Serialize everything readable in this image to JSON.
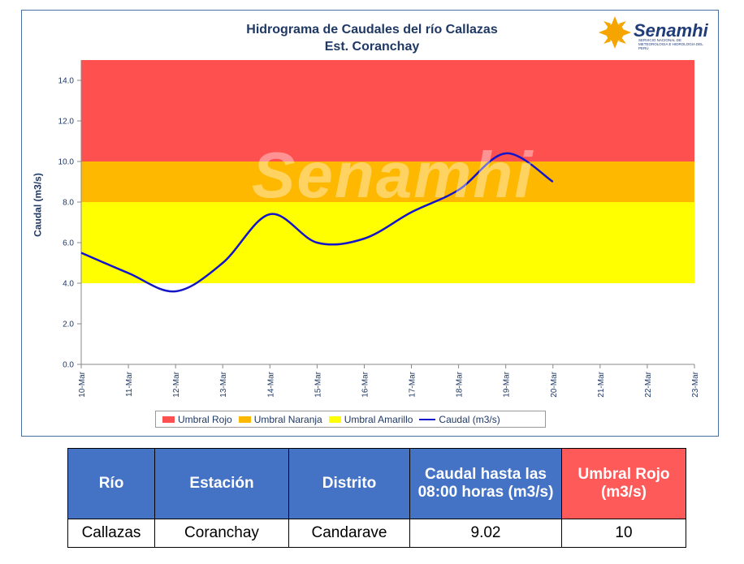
{
  "chart_data": {
    "type": "line",
    "title": "Hidrograma de Caudales del río Callazas",
    "subtitle": "Est. Coranchay",
    "ylabel": "Caudal (m3/s)",
    "xlabel": "",
    "ylim": [
      0,
      15
    ],
    "yticks": [
      "0.0",
      "2.0",
      "4.0",
      "6.0",
      "8.0",
      "10.0",
      "12.0",
      "14.0"
    ],
    "categories": [
      "10-Mar",
      "11-Mar",
      "12-Mar",
      "13-Mar",
      "14-Mar",
      "15-Mar",
      "16-Mar",
      "17-Mar",
      "18-Mar",
      "19-Mar",
      "20-Mar",
      "21-Mar",
      "22-Mar",
      "23-Mar"
    ],
    "bands": [
      {
        "name": "Umbral Rojo",
        "from": 10,
        "to": 15,
        "color": "#ff5050"
      },
      {
        "name": "Umbral Naranja",
        "from": 8,
        "to": 10,
        "color": "#ffb800"
      },
      {
        "name": "Umbral Amarillo",
        "from": 4,
        "to": 8,
        "color": "#ffff00"
      }
    ],
    "series": [
      {
        "name": "Caudal (m3/s)",
        "color": "#1414c8",
        "x": [
          0,
          1,
          2,
          3,
          4,
          5,
          6,
          7,
          8,
          9,
          10
        ],
        "values": [
          5.5,
          4.5,
          3.6,
          5.0,
          7.4,
          6.0,
          6.2,
          7.5,
          8.6,
          10.4,
          9.0
        ]
      }
    ],
    "legend": "bottom",
    "grid": false
  },
  "logo": {
    "name": "Senamhi",
    "sub": "SERVICIO NACIONAL DE METEOROLOGIA E HIDROLOGIA DEL PERÚ"
  },
  "watermark": "Senamhi",
  "table": {
    "headers": [
      "Río",
      "Estación",
      "Distrito",
      "Caudal hasta las 08:00 horas (m3/s)",
      "Umbral  Rojo (m3/s)"
    ],
    "row": [
      "Callazas",
      "Coranchay",
      "Candarave",
      "9.02",
      "10"
    ]
  }
}
